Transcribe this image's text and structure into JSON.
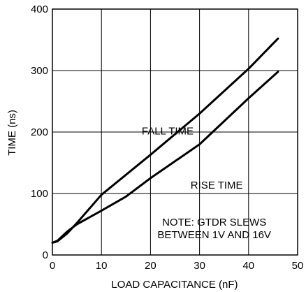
{
  "chart_data": {
    "type": "line",
    "xlabel": "LOAD CAPACITANCE (nF)",
    "ylabel": "TIME (ns)",
    "xlim": [
      0,
      50
    ],
    "ylim": [
      0,
      400
    ],
    "xticks": [
      0,
      10,
      20,
      30,
      40,
      50
    ],
    "yticks": [
      0,
      100,
      200,
      300,
      400
    ],
    "grid": true,
    "series": [
      {
        "name": "FALL TIME",
        "x": [
          0,
          1,
          3,
          5,
          10,
          20,
          30,
          40,
          46
        ],
        "y": [
          20,
          22,
          35,
          52,
          98,
          163,
          230,
          303,
          352
        ]
      },
      {
        "name": "RISE TIME",
        "x": [
          0,
          1,
          3,
          5,
          10,
          15,
          20,
          30,
          40,
          46
        ],
        "y": [
          20,
          23,
          38,
          50,
          72,
          95,
          125,
          180,
          255,
          298
        ]
      }
    ],
    "annotations": [
      {
        "lines": [
          "FALL TIME"
        ],
        "x": 23.5,
        "y": 196
      },
      {
        "lines": [
          "RISE TIME"
        ],
        "x": 33.5,
        "y": 108
      },
      {
        "lines": [
          "NOTE: GTDR SLEWS",
          "BETWEEN 1V AND 16V"
        ],
        "x": 33,
        "y": 48
      }
    ]
  }
}
